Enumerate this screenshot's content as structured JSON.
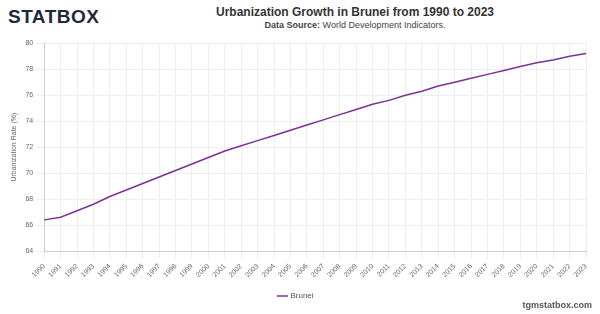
{
  "header": {
    "logo": "STATBOX"
  },
  "chart_data": {
    "type": "line",
    "title": "Urbanization Growth in Brunei from 1990 to 2023",
    "subtitle": "Data Source: World Development Indicators.",
    "y_label": "Urbanization Rate (%)",
    "categories": [
      "1990",
      "1991",
      "1992",
      "1993",
      "1994",
      "1995",
      "1996",
      "1997",
      "1998",
      "1999",
      "2000",
      "2001",
      "2002",
      "2003",
      "2004",
      "2005",
      "2006",
      "2007",
      "2008",
      "2009",
      "2010",
      "2011",
      "2012",
      "2013",
      "2014",
      "2015",
      "2016",
      "2017",
      "2018",
      "2019",
      "2020",
      "2021",
      "2022",
      "2023"
    ],
    "series": [
      {
        "name": "Brunei",
        "color": "#7b3294",
        "values": [
          66.4,
          66.6,
          67.1,
          67.6,
          68.2,
          68.7,
          69.2,
          69.7,
          70.2,
          70.7,
          71.2,
          71.7,
          72.1,
          72.5,
          72.9,
          73.3,
          73.7,
          74.1,
          74.5,
          74.9,
          75.3,
          75.6,
          76.0,
          76.3,
          76.7,
          77.0,
          77.3,
          77.6,
          77.9,
          78.2,
          78.5,
          78.7,
          79.0,
          79.2
        ]
      }
    ],
    "ylim": [
      64,
      80
    ],
    "yticks": [
      64,
      66,
      68,
      70,
      72,
      74,
      76,
      78,
      80
    ],
    "grid": true,
    "legend": "bottom"
  },
  "footer": {
    "credit": "tgmstatbox.com"
  }
}
